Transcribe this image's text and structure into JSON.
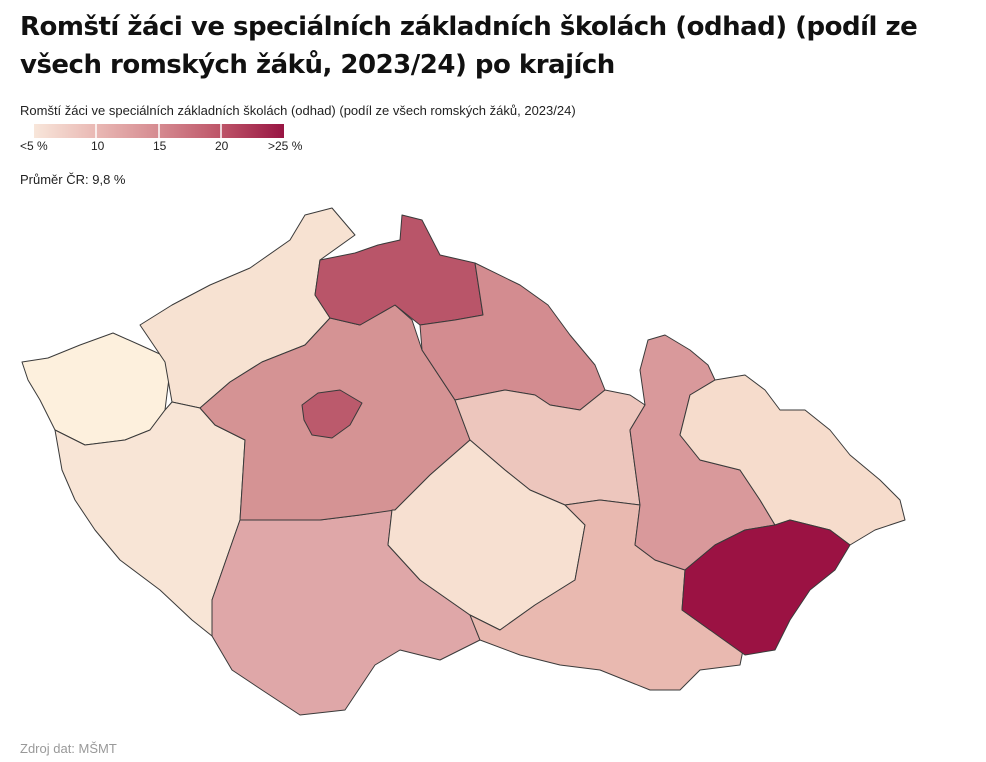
{
  "title": "Romští žáci ve speciálních základních školách (odhad) (podíl ze všech romských žáků, 2023/24) po krajích",
  "subtitle": "Romští žáci ve speciálních základních školách (odhad) (podíl ze všech romských žáků, 2023/24)",
  "legend": {
    "ticks": [
      "<5 %",
      "10",
      "15",
      "20",
      ">25 %"
    ],
    "colors": [
      "#f8e6da",
      "#e9b8b4",
      "#d58a90",
      "#bd5468",
      "#981543"
    ]
  },
  "average": "Průměr ČR: 9,8 %",
  "source": "Zdroj dat: MŠMT",
  "map_data": {
    "regions": [
      {
        "name": "Karlovarský kraj",
        "fill": "#fdf0dd"
      },
      {
        "name": "Ústecký kraj",
        "fill": "#f7e2d2"
      },
      {
        "name": "Plzeňský kraj",
        "fill": "#f8e5d6"
      },
      {
        "name": "Jihočeský kraj",
        "fill": "#dfa7a8"
      },
      {
        "name": "Středočeský kraj",
        "fill": "#d59394"
      },
      {
        "name": "Hlavní město Praha",
        "fill": "#bb5a6c"
      },
      {
        "name": "Liberecký kraj",
        "fill": "#b95569"
      },
      {
        "name": "Královéhradecký kraj",
        "fill": "#d38c90"
      },
      {
        "name": "Pardubický kraj",
        "fill": "#edc6bd"
      },
      {
        "name": "Kraj Vysočina",
        "fill": "#f7e0d1"
      },
      {
        "name": "Jihomoravský kraj",
        "fill": "#e9b9b0"
      },
      {
        "name": "Olomoucký kraj",
        "fill": "#d9999b"
      },
      {
        "name": "Moravskoslezský kraj",
        "fill": "#f6dccc"
      },
      {
        "name": "Zlínský kraj",
        "fill": "#9b1243"
      }
    ]
  }
}
